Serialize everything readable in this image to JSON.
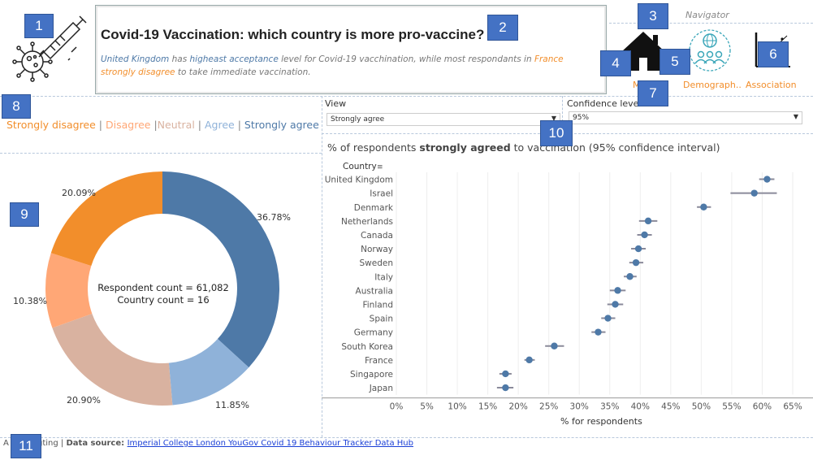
{
  "header": {
    "title": "Covid-19 Vaccination: which country is more pro-vaccine?",
    "subtitle": {
      "country_top": "United Kingdom",
      "part1": " has ",
      "highlight": "higheast acceptance",
      "part2": " level for Covid-19 vacchination, while most respondants in ",
      "country_bottom": "France strongly disagree",
      "part3": " to take immediate vaccination."
    }
  },
  "navigator": {
    "title": "Navigator",
    "items": [
      {
        "label": "M...",
        "icon": "home-icon"
      },
      {
        "label": "Demograph..",
        "icon": "demographics-icon"
      },
      {
        "label": "Association",
        "icon": "association-chart-icon"
      }
    ]
  },
  "legend": {
    "items": [
      {
        "label": "Strongly disagree",
        "color": "#f28e2b"
      },
      {
        "label": "Disagree",
        "color": "#ffa776"
      },
      {
        "label": "Neutral",
        "color": "#d9b2a0"
      },
      {
        "label": "Agree",
        "color": "#8fb2d9"
      },
      {
        "label": "Strongly agree",
        "color": "#4e79a7"
      }
    ],
    "separator": "|"
  },
  "filters": {
    "view": {
      "label": "View",
      "value": "Strongly agree"
    },
    "confidence": {
      "label": "Confidence level",
      "value": "95%"
    }
  },
  "donut": {
    "center_line1": "Respondent count = 61,082",
    "center_line2": "Country count = 16",
    "labels": {
      "strongly_agree": "36.78%",
      "agree": "11.85%",
      "neutral": "20.90%",
      "disagree": "10.38%",
      "strongly_disagree": "20.09%"
    }
  },
  "chart_data": [
    {
      "type": "pie",
      "title": "",
      "categories": [
        "Strongly agree",
        "Agree",
        "Neutral",
        "Disagree",
        "Strongly disagree"
      ],
      "values": [
        36.78,
        11.85,
        20.9,
        10.38,
        20.09
      ],
      "colors": [
        "#4e79a7",
        "#8fb2d9",
        "#d9b2a0",
        "#ffa776",
        "#f28e2b"
      ]
    },
    {
      "type": "scatter",
      "title": "% of respondents strongly agreed to vaccination (95% confidence interval)",
      "title_parts": {
        "pre": "% of respondents ",
        "bold": "strongly agreed",
        "post": " to vaccination (95% confidence interval)"
      },
      "ylabel": "Country",
      "xlabel": "% for respondents",
      "xlim": [
        0,
        65
      ],
      "xticks": [
        "0%",
        "5%",
        "10%",
        "15%",
        "20%",
        "25%",
        "30%",
        "35%",
        "40%",
        "45%",
        "50%",
        "55%",
        "60%",
        "65%"
      ],
      "countries": [
        "United Kingdom",
        "Israel",
        "Denmark",
        "Netherlands",
        "Canada",
        "Norway",
        "Sweden",
        "Italy",
        "Australia",
        "Finland",
        "Spain",
        "Germany",
        "South Korea",
        "France",
        "Singapore",
        "Japan"
      ],
      "values": [
        60.8,
        58.7,
        50.4,
        41.3,
        40.7,
        39.7,
        39.3,
        38.3,
        36.3,
        35.9,
        34.7,
        33.1,
        25.9,
        21.8,
        17.9,
        17.9
      ],
      "ci_low": [
        59.5,
        54.8,
        49.3,
        39.8,
        39.5,
        38.5,
        38.2,
        37.3,
        35.0,
        34.6,
        33.6,
        32.0,
        24.4,
        21.0,
        16.9,
        16.5
      ],
      "ci_high": [
        62.0,
        62.4,
        51.6,
        42.8,
        41.9,
        40.9,
        40.5,
        39.4,
        37.6,
        37.2,
        35.9,
        34.3,
        27.5,
        22.7,
        18.9,
        19.2
      ],
      "color": "#4e79a7"
    }
  ],
  "annotations": [
    "1",
    "2",
    "3",
    "4",
    "5",
    "6",
    "7",
    "8",
    "9",
    "10",
    "11"
  ],
  "footer": {
    "author_prefix": "A",
    "author": "Hongting",
    "separator": " | ",
    "source_label": "Data source: ",
    "source_link": "Imperial College London YouGov Covid 19 Behaviour Tracker Data Hub"
  }
}
